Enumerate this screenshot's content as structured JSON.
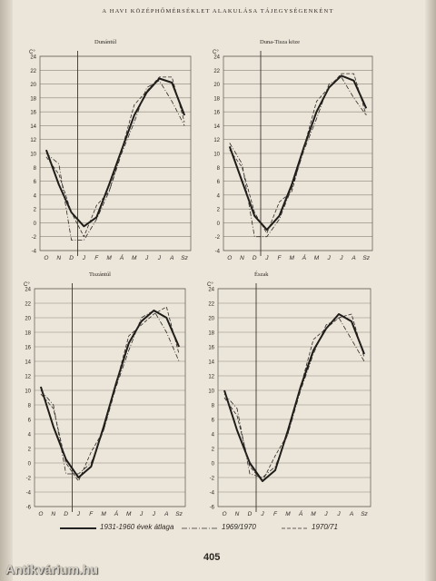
{
  "page_title": "A HAVI KÖZÉPHŐMÉRSÉKLET ALAKULÁSA TÁJEGYSÉGENKÉNT",
  "page_number": "405",
  "watermark": "Antikvárium.hu",
  "unit_label": "C°",
  "legend": [
    {
      "label": "1931-1960 évek átlaga",
      "style": "solid-bold"
    },
    {
      "label": "1969/1970",
      "style": "dash-dot"
    },
    {
      "label": "1970/71",
      "style": "dashed"
    }
  ],
  "chart_data": [
    {
      "type": "line",
      "title": "Dunántúl",
      "ylabel": "C°",
      "categories": [
        "O",
        "N",
        "D",
        "J",
        "F",
        "M",
        "Á",
        "M",
        "J",
        "J",
        "A",
        "Sz"
      ],
      "ylim": [
        -4,
        24
      ],
      "yticks": [
        24,
        22,
        20,
        18,
        16,
        14,
        12,
        10,
        8,
        6,
        4,
        2,
        0,
        -2,
        -4
      ],
      "series": [
        {
          "name": "1931-1960 évek átlaga",
          "values": [
            10.5,
            5.5,
            1.5,
            -0.5,
            0.8,
            5.5,
            10.5,
            15.5,
            18.8,
            20.8,
            20.2,
            15.5
          ]
        },
        {
          "name": "1969/1970",
          "values": [
            10.0,
            8.5,
            -2.5,
            -2.5,
            0.5,
            4.5,
            10.0,
            14.5,
            19.5,
            20.5,
            17.5,
            14.0
          ]
        },
        {
          "name": "1970/71",
          "values": [
            9.5,
            7.0,
            1.5,
            -2.0,
            2.5,
            4.5,
            10.5,
            17.0,
            19.0,
            21.0,
            21.0,
            14.5
          ]
        }
      ]
    },
    {
      "type": "line",
      "title": "Duna-Tisza köze",
      "ylabel": "C°",
      "categories": [
        "O",
        "N",
        "D",
        "J",
        "F",
        "M",
        "Á",
        "M",
        "J",
        "J",
        "A",
        "Sz"
      ],
      "ylim": [
        -4,
        24
      ],
      "yticks": [
        24,
        22,
        20,
        18,
        16,
        14,
        12,
        10,
        8,
        6,
        4,
        2,
        0,
        -2,
        -4
      ],
      "series": [
        {
          "name": "1931-1960 évek átlaga",
          "values": [
            11.0,
            6.0,
            1.0,
            -1.0,
            1.0,
            5.5,
            11.0,
            16.0,
            19.5,
            21.2,
            20.5,
            16.5
          ]
        },
        {
          "name": "1969/1970",
          "values": [
            11.5,
            8.5,
            -2.0,
            -2.0,
            0.5,
            5.0,
            10.5,
            15.0,
            20.0,
            21.0,
            18.0,
            15.5
          ]
        },
        {
          "name": "1970/71",
          "values": [
            10.5,
            8.0,
            1.5,
            -1.5,
            3.0,
            4.5,
            11.0,
            17.5,
            19.5,
            21.5,
            21.5,
            15.5
          ]
        }
      ]
    },
    {
      "type": "line",
      "title": "Tiszántúl",
      "ylabel": "C°",
      "categories": [
        "O",
        "N",
        "D",
        "J",
        "F",
        "M",
        "Á",
        "M",
        "J",
        "J",
        "A",
        "Sz"
      ],
      "ylim": [
        -6,
        24
      ],
      "yticks": [
        24,
        22,
        20,
        18,
        16,
        14,
        12,
        10,
        8,
        6,
        4,
        2,
        0,
        -2,
        -4,
        -6
      ],
      "series": [
        {
          "name": "1931-1960 évek átlaga",
          "values": [
            10.5,
            5.0,
            0.5,
            -2.0,
            -0.5,
            5.0,
            11.0,
            16.5,
            19.5,
            21.0,
            20.0,
            16.0
          ]
        },
        {
          "name": "1969/1970",
          "values": [
            10.0,
            8.0,
            -1.5,
            -1.5,
            0.0,
            4.5,
            10.5,
            15.5,
            20.0,
            21.0,
            18.0,
            14.0
          ]
        },
        {
          "name": "1970/71",
          "values": [
            9.5,
            7.5,
            0.0,
            -2.5,
            1.5,
            4.5,
            11.0,
            17.5,
            19.0,
            20.5,
            21.5,
            15.0
          ]
        }
      ]
    },
    {
      "type": "line",
      "title": "Észak",
      "ylabel": "C°",
      "categories": [
        "O",
        "N",
        "D",
        "J",
        "F",
        "M",
        "Á",
        "M",
        "J",
        "J",
        "A",
        "Sz"
      ],
      "ylim": [
        -6,
        24
      ],
      "yticks": [
        24,
        22,
        20,
        18,
        16,
        14,
        12,
        10,
        8,
        6,
        4,
        2,
        0,
        -2,
        -4,
        -6
      ],
      "series": [
        {
          "name": "1931-1960 évek átlaga",
          "values": [
            10.0,
            4.5,
            0.0,
            -2.5,
            -1.0,
            4.5,
            10.5,
            15.5,
            18.5,
            20.5,
            19.5,
            15.0
          ]
        },
        {
          "name": "1969/1970",
          "values": [
            9.5,
            7.5,
            -1.5,
            -2.0,
            -0.5,
            4.0,
            10.0,
            15.0,
            19.0,
            20.0,
            17.0,
            14.0
          ]
        },
        {
          "name": "1970/71",
          "values": [
            9.0,
            6.5,
            -0.5,
            -2.5,
            1.0,
            4.0,
            10.5,
            17.0,
            18.5,
            20.0,
            20.5,
            14.5
          ]
        }
      ]
    }
  ]
}
